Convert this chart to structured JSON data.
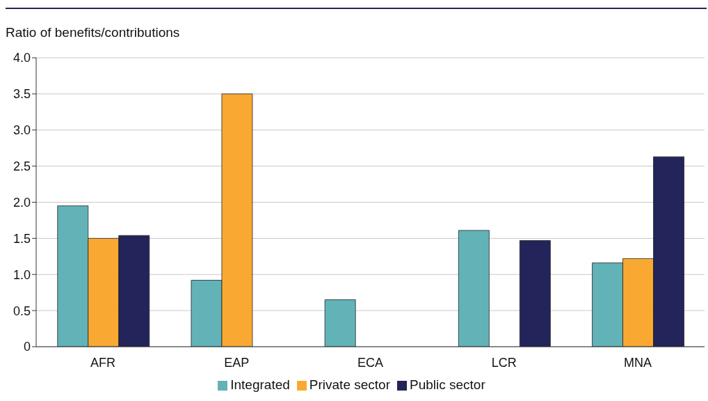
{
  "chart_data": {
    "type": "bar",
    "ylabel": "Ratio of benefits/contributions",
    "categories": [
      "AFR",
      "EAP",
      "ECA",
      "LCR",
      "MNA"
    ],
    "series": [
      {
        "name": "Integrated",
        "color": "#62b3b8",
        "values": [
          1.95,
          0.92,
          0.65,
          1.61,
          1.16
        ]
      },
      {
        "name": "Private sector",
        "color": "#f9a932",
        "values": [
          1.5,
          3.5,
          null,
          null,
          1.22
        ]
      },
      {
        "name": "Public sector",
        "color": "#23245a",
        "values": [
          1.54,
          null,
          null,
          1.47,
          2.63
        ]
      }
    ],
    "ylim": [
      0,
      4
    ],
    "yticks": [
      0,
      {
        "value": 0.5,
        "label": "0.5"
      },
      {
        "value": 1,
        "label": "1.0"
      },
      {
        "value": 1.5,
        "label": "1.5"
      },
      {
        "value": 2,
        "label": "2.0"
      },
      {
        "value": 2.5,
        "label": "2.5"
      },
      {
        "value": 3,
        "label": "3.0"
      },
      {
        "value": 3.5,
        "label": "3.5"
      },
      {
        "value": 4,
        "label": "4.0"
      }
    ],
    "grid": "y",
    "legend": "bottom"
  }
}
